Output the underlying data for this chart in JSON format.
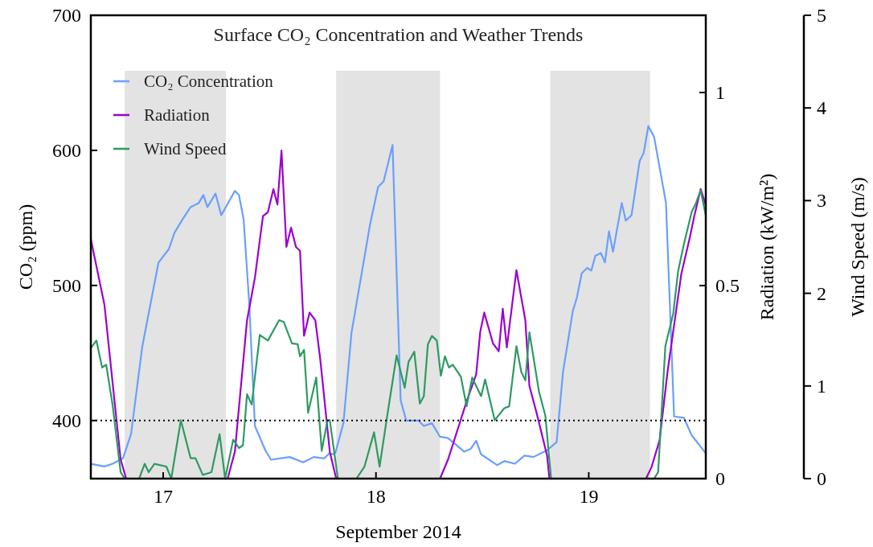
{
  "chart_data": {
    "type": "line",
    "title": "Surface CO₂ Concentration and Weather Trends",
    "xlabel": "September 2014",
    "ylabel": "CO₂ (ppm)",
    "y2label": "Radiation (kW/m²)",
    "y3label": "Wind Speed (m/s)",
    "xlim": [
      16.66,
      19.55
    ],
    "xticks": [
      17,
      18,
      19
    ],
    "ylim": [
      357,
      700
    ],
    "yticks": [
      400,
      500,
      600,
      700
    ],
    "y2lim": [
      0,
      1.2
    ],
    "y2ticks": [
      0,
      0.5,
      1
    ],
    "y3lim": [
      0,
      5
    ],
    "y3ticks": [
      0,
      1,
      2,
      3,
      4,
      5
    ],
    "legend": "top left",
    "ref_lines": [
      {
        "axis": "y",
        "value": 400,
        "color": "#000000",
        "line_style": "dotted"
      }
    ],
    "bands": [
      {
        "axis": "x",
        "from": 16.819,
        "to": 17.295,
        "color": "#e3e3e3"
      },
      {
        "axis": "x",
        "from": 17.813,
        "to": 18.301,
        "color": "#e3e3e3"
      },
      {
        "axis": "x",
        "from": 18.819,
        "to": 19.288,
        "color": "#e3e3e3"
      }
    ],
    "series": [
      {
        "name": "CO₂ Concentration",
        "color": "#6a9fff",
        "x": [
          16.66,
          16.724,
          16.762,
          16.811,
          16.849,
          16.902,
          16.978,
          17.027,
          17.053,
          17.091,
          17.129,
          17.167,
          17.189,
          17.208,
          17.246,
          17.273,
          17.337,
          17.356,
          17.378,
          17.405,
          17.431,
          17.48,
          17.507,
          17.594,
          17.658,
          17.707,
          17.757,
          17.783,
          17.794,
          17.809,
          17.847,
          17.885,
          17.972,
          18.01,
          18.036,
          18.078,
          18.116,
          18.142,
          18.199,
          18.225,
          18.263,
          18.301,
          18.339,
          18.414,
          18.445,
          18.471,
          18.494,
          18.569,
          18.603,
          18.653,
          18.698,
          18.74,
          18.804,
          18.849,
          18.879,
          18.925,
          18.944,
          18.967,
          18.993,
          19.012,
          19.031,
          19.057,
          19.076,
          19.095,
          19.114,
          19.155,
          19.174,
          19.201,
          19.239,
          19.258,
          19.28,
          19.307,
          19.363,
          19.401,
          19.447,
          19.484,
          19.549
        ],
        "values": [
          368,
          366,
          368,
          372,
          390,
          455,
          517,
          527,
          539,
          549,
          558,
          561,
          567,
          558,
          568,
          552,
          570,
          567,
          549,
          485,
          396,
          378,
          371,
          373,
          369,
          373,
          372,
          376,
          375,
          376,
          398,
          465,
          545,
          573,
          577,
          604,
          415,
          400,
          400,
          396,
          398,
          388,
          387,
          377,
          379,
          385,
          375,
          367,
          370,
          368,
          374,
          373,
          378,
          384,
          436,
          481,
          491,
          509,
          513,
          511,
          522,
          524,
          517,
          540,
          525,
          561,
          548,
          552,
          592,
          598,
          618,
          610,
          561,
          403,
          402,
          389,
          376
        ]
      },
      {
        "name": "Radiation",
        "color": "#9b00d0",
        "axis": "y2",
        "x": [
          16.66,
          16.724,
          16.8,
          16.826,
          17.303,
          17.337,
          17.394,
          17.431,
          17.469,
          17.492,
          17.518,
          17.537,
          17.556,
          17.579,
          17.601,
          17.624,
          17.643,
          17.662,
          17.688,
          17.715,
          17.738,
          17.783,
          17.813,
          18.301,
          18.339,
          18.426,
          18.471,
          18.49,
          18.509,
          18.55,
          18.577,
          18.596,
          18.615,
          18.66,
          18.702,
          18.721,
          18.755,
          18.804,
          18.815,
          19.269,
          19.295,
          19.333,
          19.371,
          19.435,
          19.473,
          19.496,
          19.526,
          19.549
        ],
        "values": [
          0.62,
          0.45,
          0.05,
          0,
          0,
          0.07,
          0.41,
          0.52,
          0.68,
          0.69,
          0.75,
          0.71,
          0.85,
          0.6,
          0.65,
          0.6,
          0.59,
          0.37,
          0.43,
          0.41,
          0.31,
          0.07,
          0,
          0,
          0.05,
          0.2,
          0.27,
          0.38,
          0.43,
          0.35,
          0.33,
          0.44,
          0.34,
          0.54,
          0.41,
          0.24,
          0.17,
          0.06,
          0,
          0,
          0.03,
          0.1,
          0.28,
          0.53,
          0.62,
          0.68,
          0.75,
          0.71
        ]
      },
      {
        "name": "Wind Speed",
        "color": "#2e9a62",
        "axis": "y3",
        "x": [
          16.66,
          16.686,
          16.713,
          16.732,
          16.762,
          16.8,
          16.819,
          16.887,
          16.913,
          16.932,
          16.959,
          17.015,
          17.038,
          17.083,
          17.129,
          17.152,
          17.186,
          17.227,
          17.265,
          17.291,
          17.329,
          17.356,
          17.375,
          17.394,
          17.416,
          17.454,
          17.492,
          17.545,
          17.567,
          17.605,
          17.632,
          17.643,
          17.662,
          17.681,
          17.719,
          17.745,
          17.772,
          17.783,
          17.821,
          17.908,
          17.946,
          17.991,
          18.017,
          18.055,
          18.097,
          18.135,
          18.153,
          18.18,
          18.206,
          18.225,
          18.244,
          18.263,
          18.286,
          18.305,
          18.324,
          18.343,
          18.361,
          18.399,
          18.426,
          18.452,
          18.494,
          18.513,
          18.558,
          18.603,
          18.626,
          18.66,
          18.683,
          18.702,
          18.721,
          18.766,
          18.796,
          18.823,
          19.307,
          19.326,
          19.36,
          19.397,
          19.42,
          19.447,
          19.484,
          19.503,
          19.526,
          19.549
        ],
        "values": [
          1.41,
          1.49,
          1.2,
          1.23,
          0.8,
          0.07,
          0,
          0,
          0.16,
          0.07,
          0.16,
          0.13,
          0,
          0.63,
          0.22,
          0.22,
          0.04,
          0.07,
          0.48,
          0,
          0.42,
          0.33,
          0.36,
          0.91,
          0.8,
          1.55,
          1.49,
          1.71,
          1.69,
          1.46,
          1.45,
          1.32,
          1.39,
          0.71,
          1.09,
          0.3,
          0.63,
          0.63,
          0,
          0,
          0.13,
          0.5,
          0.13,
          0.71,
          1.33,
          0.98,
          1.26,
          1.37,
          0.81,
          0.89,
          1.45,
          1.54,
          1.49,
          1.11,
          1.32,
          1.2,
          1.23,
          1.1,
          0.78,
          1.09,
          0.89,
          1.07,
          0.63,
          0.76,
          0.78,
          1.43,
          1.15,
          1.06,
          1.58,
          0.94,
          0.68,
          0,
          0,
          0.07,
          1.43,
          1.78,
          2.24,
          2.53,
          2.88,
          2.97,
          3.11,
          2.85
        ]
      }
    ]
  }
}
